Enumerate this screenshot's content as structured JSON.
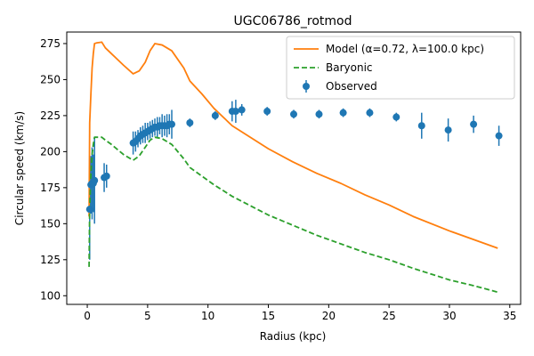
{
  "chart_data": {
    "type": "line",
    "title": "UGC06786_rotmod",
    "xlabel": "Radius (kpc)",
    "ylabel": "Circular speed (km/s)",
    "xlim": [
      -1.7,
      35.9
    ],
    "ylim": [
      94,
      283
    ],
    "xticks": [
      0,
      5,
      10,
      15,
      20,
      25,
      30,
      35
    ],
    "yticks": [
      100,
      125,
      150,
      175,
      200,
      225,
      250,
      275
    ],
    "grid": false,
    "legend_position": "top-right",
    "colors": {
      "model": "#ff7f0e",
      "baryonic": "#2ca02c",
      "observed": "#1f77b4"
    },
    "series": [
      {
        "name": "Model (α=0.72, λ=100.0 kpc)",
        "style": "solid",
        "x": [
          0.15,
          0.2,
          0.3,
          0.4,
          0.5,
          0.6,
          0.8,
          1.2,
          1.5,
          2.0,
          3.0,
          3.8,
          4.3,
          4.8,
          5.2,
          5.6,
          6.2,
          7.0,
          8.0,
          8.5,
          9.5,
          10.5,
          12.0,
          15.0,
          17.0,
          19.0,
          21.0,
          23.0,
          25.0,
          27.0,
          30.0,
          32.0,
          34.0
        ],
        "y": [
          155,
          220,
          240,
          258,
          268,
          275,
          275.5,
          276,
          272,
          268,
          260,
          254,
          256,
          262,
          270,
          275,
          274,
          270,
          258,
          249,
          240,
          230,
          218,
          202,
          193,
          185,
          178,
          170,
          163,
          155,
          145,
          139,
          133
        ]
      },
      {
        "name": "Baryonic",
        "style": "dashed",
        "x": [
          0.15,
          0.2,
          0.3,
          0.4,
          0.5,
          0.6,
          0.8,
          1.2,
          1.5,
          2.0,
          3.0,
          3.8,
          4.3,
          4.8,
          5.2,
          5.6,
          6.2,
          7.0,
          8.0,
          8.5,
          9.5,
          10.5,
          12.0,
          15.0,
          17.0,
          19.0,
          21.0,
          23.0,
          25.0,
          27.0,
          30.0,
          32.0,
          34.0
        ],
        "y": [
          120,
          160,
          185,
          198,
          205,
          210,
          210,
          210,
          208,
          205,
          198,
          194,
          197,
          203,
          208,
          210,
          209,
          205,
          195,
          189,
          183,
          177,
          169,
          156,
          149,
          142,
          136,
          130,
          125,
          119,
          111,
          107,
          102.5
        ]
      }
    ],
    "observed": {
      "name": "Observed",
      "points": [
        {
          "x": 0.2,
          "y": 160,
          "err": 35
        },
        {
          "x": 0.3,
          "y": 177,
          "err": 20
        },
        {
          "x": 0.4,
          "y": 178,
          "err": 25
        },
        {
          "x": 0.5,
          "y": 178,
          "err": 20
        },
        {
          "x": 0.6,
          "y": 180,
          "err": 30
        },
        {
          "x": 1.4,
          "y": 182,
          "err": 10
        },
        {
          "x": 1.6,
          "y": 183,
          "err": 8
        },
        {
          "x": 3.8,
          "y": 206,
          "err": 8
        },
        {
          "x": 4.0,
          "y": 207,
          "err": 7
        },
        {
          "x": 4.2,
          "y": 209,
          "err": 6
        },
        {
          "x": 4.4,
          "y": 211,
          "err": 6
        },
        {
          "x": 4.6,
          "y": 212,
          "err": 6
        },
        {
          "x": 4.8,
          "y": 213,
          "err": 7
        },
        {
          "x": 5.0,
          "y": 214,
          "err": 6
        },
        {
          "x": 5.2,
          "y": 215,
          "err": 6
        },
        {
          "x": 5.4,
          "y": 216,
          "err": 6
        },
        {
          "x": 5.6,
          "y": 217,
          "err": 6
        },
        {
          "x": 5.8,
          "y": 217,
          "err": 7
        },
        {
          "x": 6.0,
          "y": 218,
          "err": 6
        },
        {
          "x": 6.2,
          "y": 218,
          "err": 8
        },
        {
          "x": 6.4,
          "y": 218,
          "err": 7
        },
        {
          "x": 6.6,
          "y": 218,
          "err": 8
        },
        {
          "x": 6.8,
          "y": 219,
          "err": 7
        },
        {
          "x": 7.0,
          "y": 219,
          "err": 10
        },
        {
          "x": 8.5,
          "y": 220,
          "err": 3
        },
        {
          "x": 10.6,
          "y": 225,
          "err": 3
        },
        {
          "x": 12.0,
          "y": 228,
          "err": 7
        },
        {
          "x": 12.3,
          "y": 228,
          "err": 8
        },
        {
          "x": 12.8,
          "y": 229,
          "err": 4
        },
        {
          "x": 14.9,
          "y": 228,
          "err": 3
        },
        {
          "x": 17.1,
          "y": 226,
          "err": 3
        },
        {
          "x": 19.2,
          "y": 226,
          "err": 3
        },
        {
          "x": 21.2,
          "y": 227,
          "err": 3
        },
        {
          "x": 23.4,
          "y": 227,
          "err": 3
        },
        {
          "x": 25.6,
          "y": 224,
          "err": 3
        },
        {
          "x": 27.7,
          "y": 218,
          "err": 9
        },
        {
          "x": 29.9,
          "y": 215,
          "err": 8
        },
        {
          "x": 32.0,
          "y": 219,
          "err": 6
        },
        {
          "x": 34.1,
          "y": 211,
          "err": 7
        }
      ]
    }
  }
}
